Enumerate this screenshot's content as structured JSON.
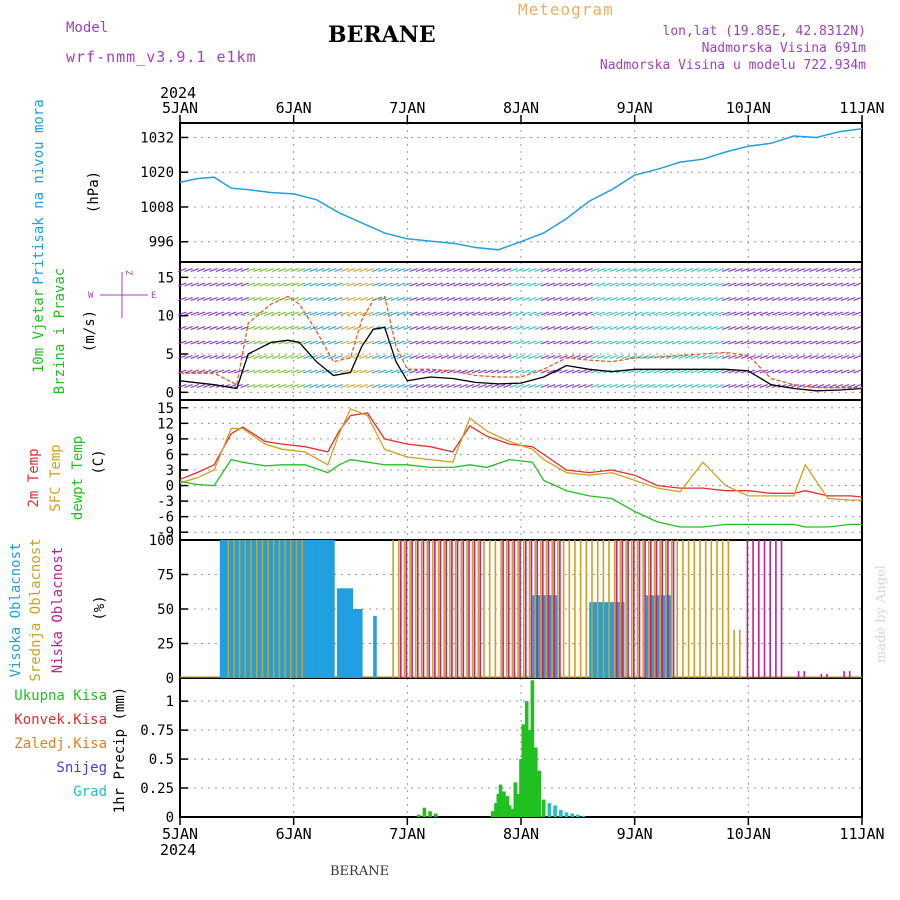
{
  "header": {
    "model_label": "Model",
    "model_name": "wrf-nmm_v3.9.1 e1km",
    "station": "BERANE",
    "meteogram_label": "Meteogram",
    "coords": "lon,lat (19.85E, 42.8312N)",
    "altitude": "Nadmorska Visina 691m",
    "model_altitude": "Nadmorska Visina u modelu 722.934m",
    "footer_station": "BERANE",
    "watermark": "made by Angel"
  },
  "colors": {
    "pressure": "#20a0e0",
    "wind_label": "#20c020",
    "wind_speed": "#000000",
    "wind_gust": "#e06020",
    "temp_2m": "#e03030",
    "temp_sfc": "#d0a020",
    "dewpoint": "#20c020",
    "cloud_high": "#20a0e0",
    "cloud_mid": "#d0a020",
    "cloud_low": "#c02090",
    "precip_total": "#20c020",
    "precip_conv": "#e03030",
    "precip_frozen": "#e08020",
    "precip_snow": "#4040e0",
    "precip_graupel": "#20c0c0",
    "compass": "#a040c0"
  },
  "chart_data": [
    {
      "type": "line",
      "panel": "pressure",
      "x_labels": [
        "5JAN",
        "6JAN",
        "7JAN",
        "8JAN",
        "9JAN",
        "10JAN",
        "11JAN"
      ],
      "year": "2024",
      "ylabel_lines": [
        "Pritisak na nivou mora",
        "(hPa)"
      ],
      "yticks": [
        996,
        1008,
        1020,
        1032
      ],
      "ylim": [
        989,
        1037
      ],
      "series": [
        {
          "x": [
            0,
            0.15,
            0.3,
            0.45,
            0.6,
            0.8,
            1.0,
            1.2,
            1.4,
            1.6,
            1.8,
            2.0,
            2.2,
            2.4,
            2.6,
            2.8,
            3.0,
            3.2,
            3.4,
            3.6,
            3.8,
            4.0,
            4.2,
            4.4,
            4.6,
            4.8,
            5.0,
            5.2,
            5.4,
            5.6,
            5.8,
            6.0
          ],
          "values": [
            1016.5,
            1017.8,
            1018.3,
            1014.5,
            1014,
            1013,
            1012.5,
            1010.5,
            1006,
            1002.5,
            999,
            997,
            996.2,
            995.5,
            994,
            993.2,
            996,
            999,
            1004,
            1010,
            1014,
            1019,
            1021,
            1023.5,
            1024.5,
            1027,
            1029,
            1030,
            1032.5,
            1032,
            1034,
            1035
          ]
        }
      ],
      "grid": true
    },
    {
      "type": "line",
      "panel": "wind",
      "ylabel_lines": [
        "10m Vjetar",
        "Brzina i Pravac",
        "(m/s)"
      ],
      "compass_labels": [
        "W",
        "E",
        "Z"
      ],
      "yticks": [
        0,
        5,
        10,
        15
      ],
      "ylim": [
        -1,
        17
      ],
      "series": [
        {
          "x": [
            0,
            0.3,
            0.5,
            0.6,
            0.8,
            0.95,
            1.05,
            1.2,
            1.35,
            1.5,
            1.6,
            1.7,
            1.8,
            1.9,
            2.0,
            2.2,
            2.4,
            2.6,
            2.8,
            3.0,
            3.2,
            3.4,
            3.6,
            3.8,
            4.0,
            4.2,
            4.4,
            4.6,
            4.8,
            5.0,
            5.2,
            5.4,
            5.6,
            5.8,
            6.0
          ],
          "values": [
            1.5,
            1,
            0.5,
            5,
            6.5,
            6.8,
            6.5,
            4,
            2.2,
            2.6,
            6,
            8.2,
            8.5,
            4,
            1.5,
            2,
            1.8,
            1.3,
            1.1,
            1.2,
            2,
            3.5,
            3,
            2.7,
            3,
            3,
            3,
            3,
            3,
            2.8,
            1,
            0.5,
            0.2,
            0.3,
            0.5
          ]
        },
        {
          "x": [
            0,
            0.3,
            0.5,
            0.6,
            0.8,
            0.95,
            1.05,
            1.2,
            1.35,
            1.5,
            1.6,
            1.7,
            1.8,
            1.9,
            2.0,
            2.2,
            2.4,
            2.6,
            2.8,
            3.0,
            3.2,
            3.4,
            3.6,
            3.8,
            4.0,
            4.2,
            4.4,
            4.6,
            4.8,
            5.0,
            5.2,
            5.4,
            5.6,
            5.8,
            6.0
          ],
          "values": [
            2.5,
            2.5,
            1,
            9,
            11.5,
            12.5,
            11.5,
            8,
            4,
            4.5,
            9.5,
            12,
            12.5,
            6,
            3,
            3,
            2.8,
            2.2,
            2,
            2,
            3,
            4.5,
            4.2,
            4,
            4.5,
            4.6,
            4.8,
            5,
            5.2,
            4.8,
            1.8,
            1,
            0.6,
            0.6,
            0.6
          ]
        }
      ],
      "grid": true
    },
    {
      "type": "line",
      "panel": "temperature",
      "ylabel_lines": [
        "2m Temp",
        "SFC Temp",
        "dewpt Temp",
        "(C)"
      ],
      "yticks": [
        -9,
        -6,
        -3,
        0,
        3,
        6,
        9,
        12,
        15
      ],
      "ylim": [
        -10.5,
        16.5
      ],
      "series": [
        {
          "x": [
            0,
            0.15,
            0.3,
            0.45,
            0.55,
            0.75,
            0.9,
            1.1,
            1.3,
            1.4,
            1.5,
            1.65,
            1.8,
            2.0,
            2.2,
            2.4,
            2.55,
            2.7,
            2.9,
            3.1,
            3.2,
            3.4,
            3.6,
            3.8,
            4.0,
            4.2,
            4.4,
            4.6,
            4.8,
            5.0,
            5.2,
            5.4,
            5.5,
            5.7,
            5.9,
            6.0
          ],
          "values": [
            1.2,
            2.5,
            4,
            10,
            11.3,
            8.5,
            8.0,
            7.5,
            6.5,
            10.5,
            13.5,
            14.0,
            9,
            8,
            7.5,
            6.5,
            11.5,
            9.5,
            8.0,
            7.5,
            6,
            3,
            2.5,
            3,
            2,
            0,
            -0.5,
            -0.5,
            -1,
            -1,
            -1.5,
            -1.5,
            -1,
            -2,
            -2,
            -2.2
          ]
        },
        {
          "x": [
            0,
            0.15,
            0.3,
            0.45,
            0.55,
            0.75,
            0.9,
            1.1,
            1.3,
            1.4,
            1.5,
            1.65,
            1.8,
            2.0,
            2.2,
            2.4,
            2.55,
            2.7,
            2.9,
            3.1,
            3.2,
            3.4,
            3.6,
            3.8,
            4.0,
            4.2,
            4.4,
            4.6,
            4.8,
            5.0,
            5.2,
            5.4,
            5.5,
            5.7,
            5.9,
            6.0
          ],
          "values": [
            0.5,
            1.5,
            3,
            11,
            11,
            8,
            7,
            6.5,
            4,
            10,
            14.8,
            13.5,
            7,
            5.5,
            5,
            4.5,
            13,
            10.5,
            8.5,
            7,
            5,
            2.5,
            2,
            2.5,
            1,
            -0.5,
            -1.2,
            4.5,
            0,
            -2,
            -2,
            -2,
            4,
            -2.5,
            -2.8,
            -2.8
          ]
        },
        {
          "x": [
            0,
            0.15,
            0.3,
            0.45,
            0.55,
            0.75,
            0.9,
            1.1,
            1.3,
            1.4,
            1.5,
            1.65,
            1.8,
            2.0,
            2.2,
            2.4,
            2.55,
            2.7,
            2.9,
            3.1,
            3.2,
            3.4,
            3.6,
            3.8,
            4.0,
            4.2,
            4.4,
            4.6,
            4.8,
            5.0,
            5.2,
            5.4,
            5.5,
            5.7,
            5.9,
            6.0
          ],
          "values": [
            0.8,
            0.2,
            0,
            5,
            4.5,
            3.8,
            4,
            4,
            2.5,
            4,
            5,
            4.5,
            4,
            4,
            3.5,
            3.5,
            4,
            3.5,
            5,
            4.5,
            1,
            -1,
            -2,
            -2.5,
            -5,
            -7,
            -8,
            -8,
            -7.5,
            -7.5,
            -7.5,
            -7.5,
            -8,
            -8,
            -7.5,
            -7.5
          ]
        }
      ],
      "grid": true
    },
    {
      "type": "bar",
      "panel": "cloud",
      "ylabel_lines": [
        "Visoka Oblacnost",
        "Srednja Oblacnost",
        "Niska Oblacnost",
        "(%)"
      ],
      "yticks": [
        0,
        25,
        50,
        75,
        100
      ],
      "ylim": [
        0,
        100
      ],
      "series": [
        {
          "segments": [
            [
              0.35,
              1.35,
              100
            ],
            [
              1.38,
              1.5,
              65
            ],
            [
              1.52,
              1.58,
              50
            ],
            [
              1.7,
              1.72,
              45
            ],
            [
              3.1,
              3.3,
              60
            ],
            [
              3.6,
              3.9,
              55
            ],
            [
              4.1,
              4.3,
              60
            ]
          ]
        },
        {
          "segments": [
            [
              0.4,
              1.1,
              100
            ],
            [
              1.85,
              3.4,
              100
            ],
            [
              3.4,
              4.8,
              100
            ],
            [
              4.8,
              4.9,
              35
            ],
            [
              4.95,
              5.0,
              0
            ]
          ]
        },
        {
          "segments": [
            [
              1.9,
              2.6,
              100
            ],
            [
              2.8,
              3.3,
              100
            ],
            [
              3.8,
              4.3,
              100
            ],
            [
              4.95,
              5.25,
              100
            ],
            [
              5.4,
              5.45,
              5
            ],
            [
              5.6,
              5.65,
              3
            ],
            [
              5.8,
              5.85,
              5
            ]
          ]
        }
      ],
      "grid": true
    },
    {
      "type": "bar",
      "panel": "precip",
      "ylabel_lines": [
        "1hr Precip (mm)"
      ],
      "legend": [
        "Ukupna Kisa",
        "Konvek.Kisa",
        "Zaledj.Kisa",
        "Snijeg",
        "Grad"
      ],
      "yticks": [
        0,
        0.25,
        0.5,
        0.75,
        1
      ],
      "ylim": [
        0,
        1.2
      ],
      "x": [
        2.1,
        2.15,
        2.2,
        2.25,
        2.75,
        2.78,
        2.8,
        2.82,
        2.85,
        2.88,
        2.9,
        2.92,
        2.95,
        2.98,
        3.0,
        3.02,
        3.05,
        3.08,
        3.1,
        3.13,
        3.16,
        3.2,
        3.25,
        3.3,
        3.35,
        3.4,
        3.45,
        3.5,
        3.55
      ],
      "values": [
        0.02,
        0.08,
        0.05,
        0.03,
        0.05,
        0.12,
        0.2,
        0.28,
        0.22,
        0.18,
        0.1,
        0.07,
        0.3,
        0.2,
        0.5,
        0.8,
        1.0,
        0.75,
        1.18,
        0.6,
        0.4,
        0.15,
        0.12,
        0.1,
        0.06,
        0.04,
        0.03,
        0.02,
        0.01
      ],
      "grid": true
    }
  ]
}
